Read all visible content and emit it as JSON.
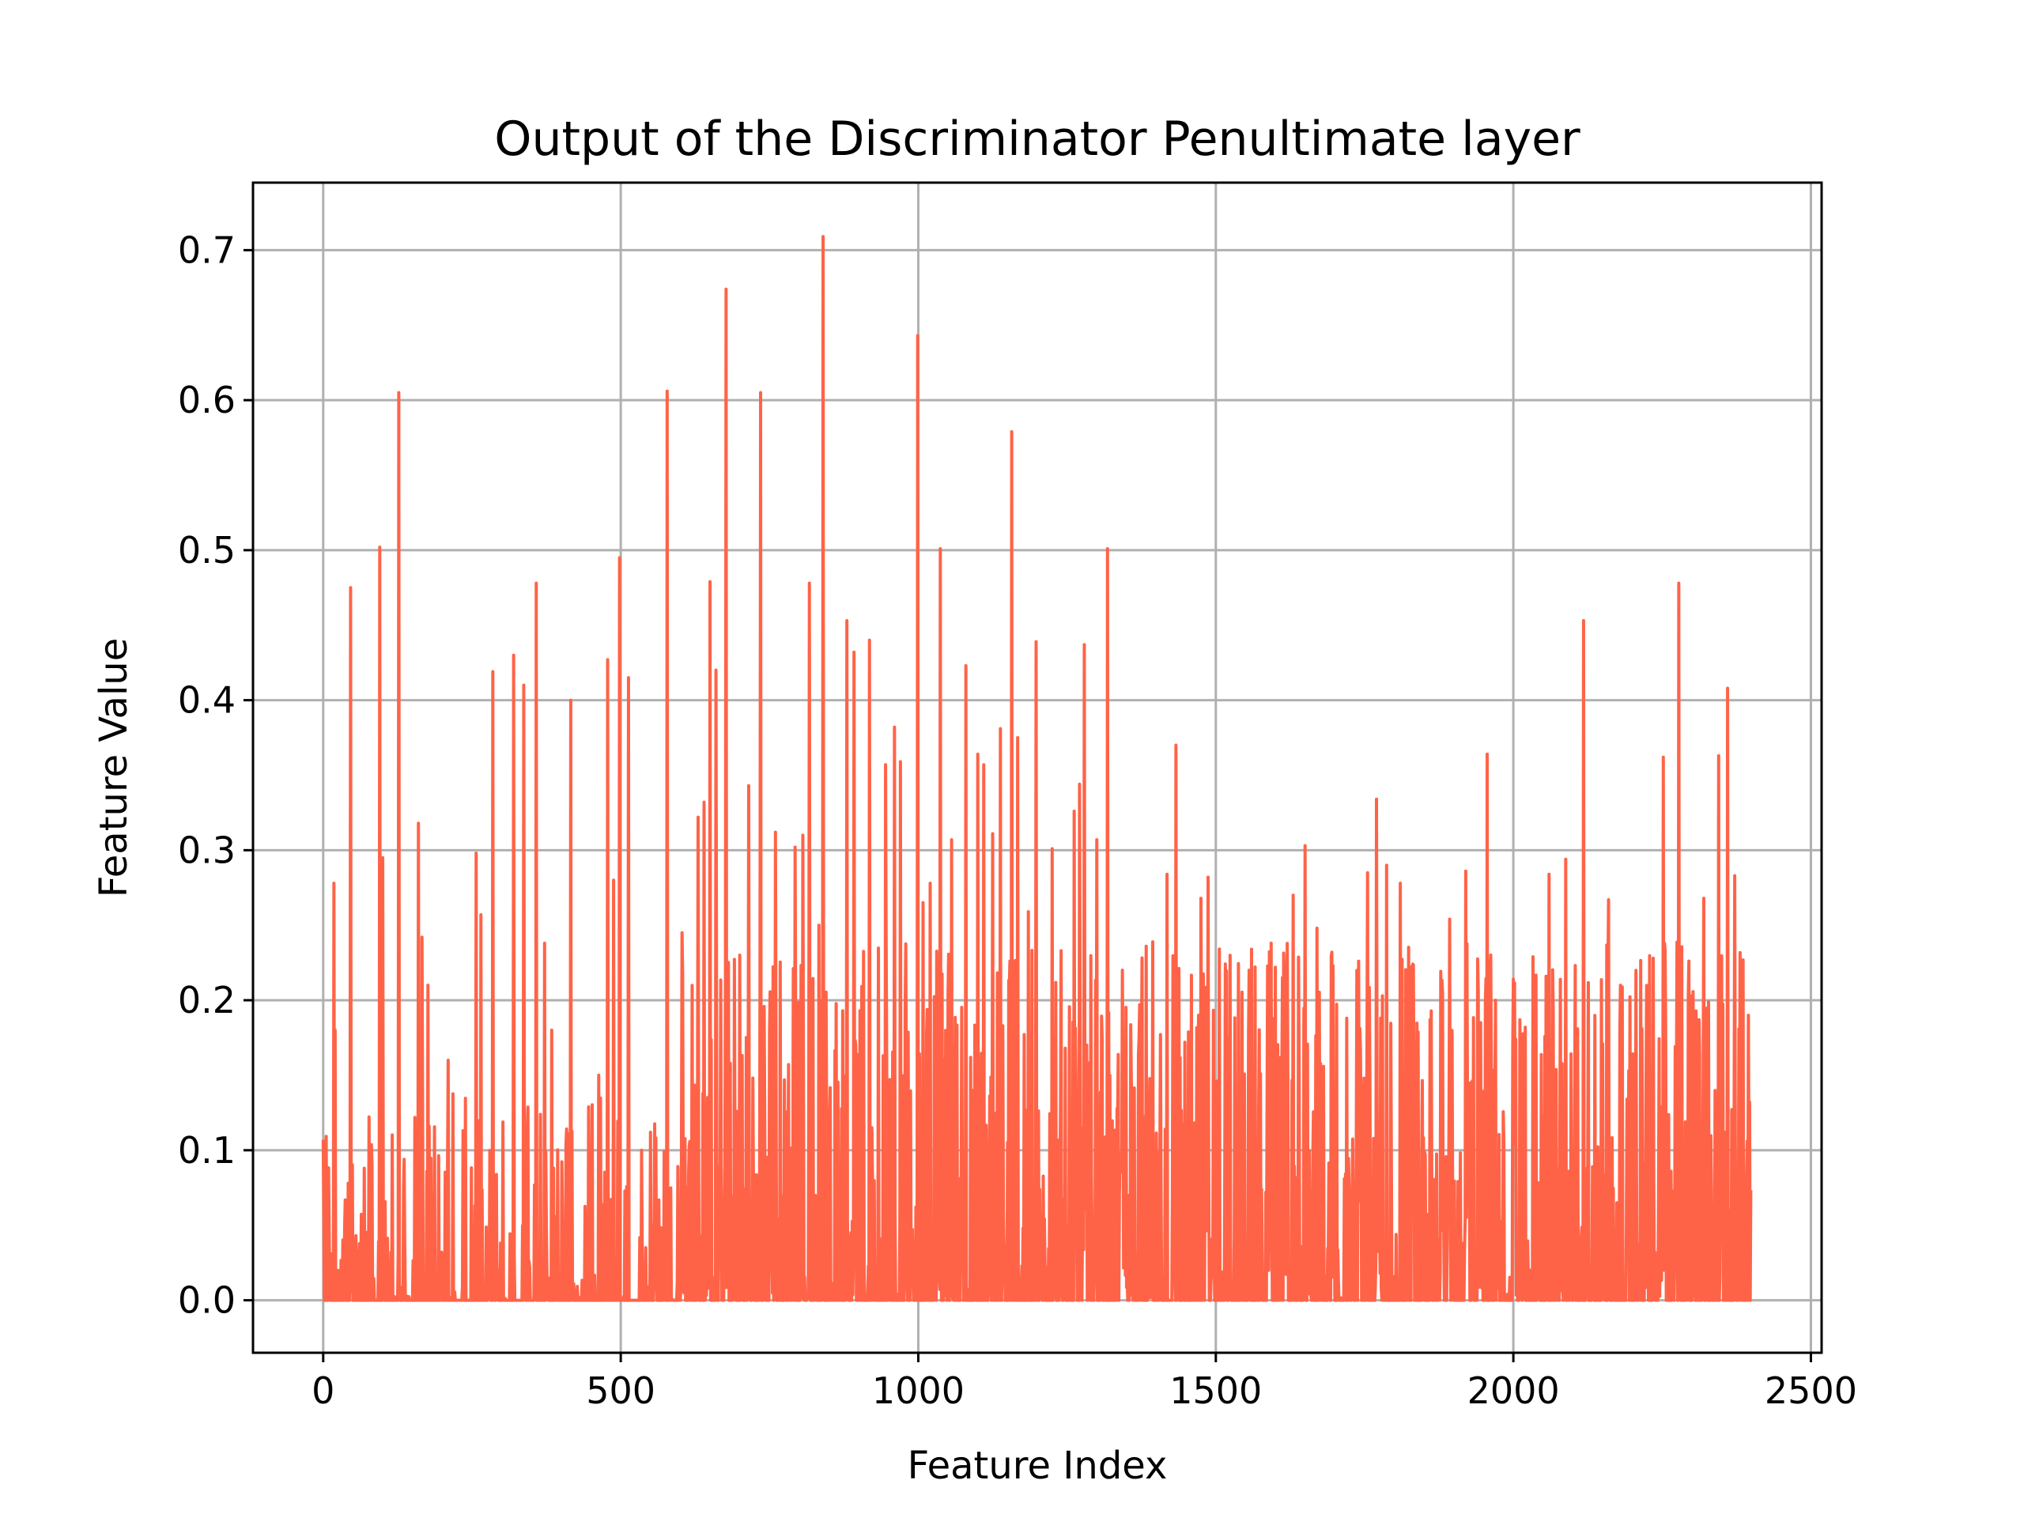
{
  "chart_data": {
    "type": "line",
    "title": "Output of the Discriminator Penultimate layer",
    "xlabel": "Feature Index",
    "ylabel": "Feature Value",
    "xlim": [
      -118,
      2518
    ],
    "ylim": [
      -0.035,
      0.745
    ],
    "x_ticks": [
      0,
      500,
      1000,
      1500,
      2000,
      2500
    ],
    "x_tick_labels": [
      "0",
      "500",
      "1000",
      "1500",
      "2000",
      "2500"
    ],
    "y_ticks": [
      0.0,
      0.1,
      0.2,
      0.3,
      0.4,
      0.5,
      0.6,
      0.7
    ],
    "y_tick_labels": [
      "0.0",
      "0.1",
      "0.2",
      "0.3",
      "0.4",
      "0.5",
      "0.6",
      "0.7"
    ],
    "grid": true,
    "color": "#ff6347",
    "n_points": 2400,
    "series": [
      {
        "x": [
          0,
          18,
          20,
          42,
          46,
          95,
          100,
          127,
          160,
          166,
          176,
          210,
          235,
          257,
          265,
          285,
          320,
          337,
          358,
          372,
          384,
          416,
          463,
          478,
          488,
          498,
          513,
          550,
          578,
          603,
          630,
          640,
          650,
          660,
          677,
          700,
          715,
          735,
          760,
          793,
          806,
          817,
          833,
          840,
          880,
          892,
          918,
          945,
          960,
          970,
          999,
          1008,
          1020,
          1037,
          1056,
          1080,
          1100,
          1110,
          1125,
          1138,
          1157,
          1167,
          1185,
          1198,
          1225,
          1240,
          1262,
          1271,
          1279,
          1300,
          1318,
          1343,
          1372,
          1418,
          1433,
          1475,
          1487,
          1520,
          1560,
          1600,
          1630,
          1650,
          1670,
          1695,
          1720,
          1740,
          1755,
          1770,
          1787,
          1810,
          1860,
          1893,
          1920,
          1945,
          1956,
          1970,
          2000,
          2020,
          2060,
          2088,
          2118,
          2160,
          2180,
          2216,
          2252,
          2278,
          2297,
          2320,
          2345,
          2360,
          2372,
          2384,
          2395,
          2400
        ],
        "y": [
          0.107,
          0.278,
          0.18,
          0.078,
          0.475,
          0.502,
          0.295,
          0.605,
          0.318,
          0.242,
          0.21,
          0.16,
          0.113,
          0.298,
          0.257,
          0.419,
          0.43,
          0.41,
          0.478,
          0.238,
          0.18,
          0.4,
          0.15,
          0.427,
          0.28,
          0.495,
          0.415,
          0.112,
          0.606,
          0.245,
          0.322,
          0.332,
          0.479,
          0.42,
          0.674,
          0.23,
          0.343,
          0.605,
          0.312,
          0.302,
          0.31,
          0.478,
          0.25,
          0.709,
          0.453,
          0.432,
          0.44,
          0.357,
          0.382,
          0.359,
          0.643,
          0.265,
          0.278,
          0.501,
          0.307,
          0.423,
          0.364,
          0.357,
          0.311,
          0.381,
          0.579,
          0.375,
          0.259,
          0.439,
          0.301,
          0.233,
          0.326,
          0.344,
          0.437,
          0.307,
          0.501,
          0.22,
          0.197,
          0.284,
          0.37,
          0.268,
          0.282,
          0.175,
          0.234,
          0.222,
          0.27,
          0.303,
          0.248,
          0.232,
          0.188,
          0.226,
          0.285,
          0.334,
          0.29,
          0.278,
          0.187,
          0.254,
          0.286,
          0.185,
          0.364,
          0.2,
          0.214,
          0.182,
          0.284,
          0.294,
          0.453,
          0.267,
          0.21,
          0.181,
          0.362,
          0.478,
          0.203,
          0.268,
          0.363,
          0.408,
          0.283,
          0.195,
          0.19,
          0.123
        ]
      }
    ]
  }
}
